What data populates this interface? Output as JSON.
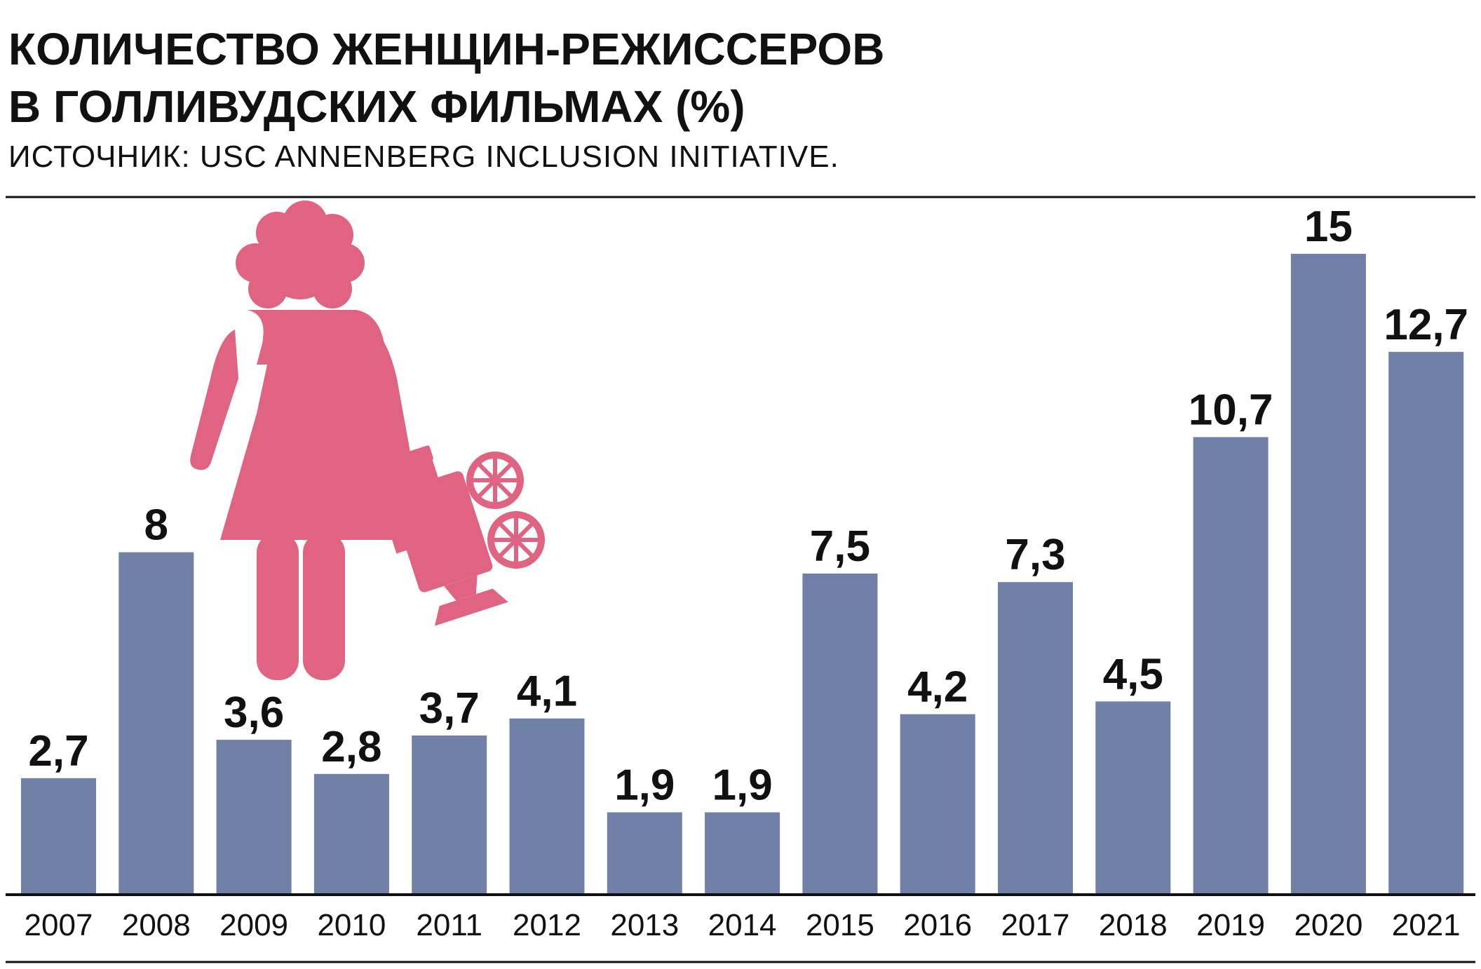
{
  "title_line1": "КОЛИЧЕСТВО ЖЕНЩИН-РЕЖИССЕРОВ",
  "title_line2": "В ГОЛЛИВУДСКИХ ФИЛЬМАХ (%)",
  "source": "ИСТОЧНИК: USC ANNENBERG INCLUSION INITIATIVE.",
  "colors": {
    "bar": "#7080a6",
    "illustration": "#e06482",
    "text": "#111111",
    "rule": "#111111"
  },
  "illustration_icon": "woman-with-film-camera-icon",
  "chart_data": {
    "type": "bar",
    "categories": [
      "2007",
      "2008",
      "2009",
      "2010",
      "2011",
      "2012",
      "2013",
      "2014",
      "2015",
      "2016",
      "2017",
      "2018",
      "2019",
      "2020",
      "2021"
    ],
    "values": [
      2.7,
      8,
      3.6,
      2.8,
      3.7,
      4.1,
      1.9,
      1.9,
      7.5,
      4.2,
      7.3,
      4.5,
      10.7,
      15,
      12.7
    ],
    "value_labels": [
      "2,7",
      "8",
      "3,6",
      "2,8",
      "3,7",
      "4,1",
      "1,9",
      "1,9",
      "7,5",
      "4,2",
      "7,3",
      "4,5",
      "10,7",
      "15",
      "12,7"
    ],
    "title": "КОЛИЧЕСТВО ЖЕНЩИН-РЕЖИССЕРОВ В ГОЛЛИВУДСКИХ ФИЛЬМАХ (%)",
    "xlabel": "",
    "ylabel": "",
    "ylim": [
      0,
      15
    ],
    "grid": false,
    "legend": "none"
  }
}
